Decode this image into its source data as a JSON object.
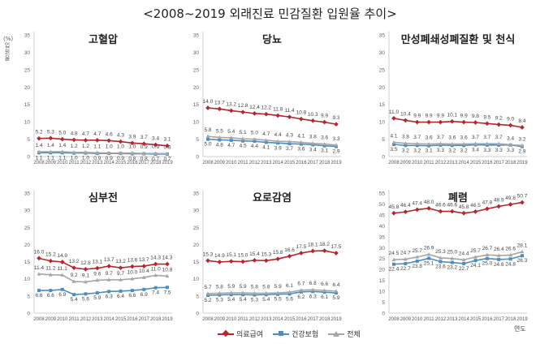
{
  "title": "<2008~2019 외래진료 민감질환 입원율 추이>",
  "y_unit": "(%)입원율",
  "x_unit": "연도",
  "legend": [
    {
      "label": "의료급여",
      "color": "#b5252b",
      "marker": "diamond"
    },
    {
      "label": "건강보험",
      "color": "#4a8ec2",
      "marker": "square"
    },
    {
      "label": "전체",
      "color": "#a6a6a6",
      "marker": "triangle"
    }
  ],
  "chart_data": [
    {
      "type": "line",
      "title": "고혈압",
      "x": [
        "2008",
        "2009",
        "2010",
        "2011",
        "2012",
        "2013",
        "2014",
        "2015",
        "2016",
        "2017",
        "2018",
        "2019"
      ],
      "ylim": [
        0,
        35
      ],
      "yticks": [
        0,
        5,
        10,
        15,
        20,
        25,
        30,
        35
      ],
      "series": [
        {
          "name": "의료급여",
          "values": [
            5.2,
            5.3,
            5.0,
            4.8,
            4.7,
            4.7,
            4.6,
            4.3,
            3.9,
            3.7,
            3.4,
            3.1
          ]
        },
        {
          "name": "건강보험",
          "values": [
            1.1,
            1.1,
            1.1,
            1.0,
            1.0,
            0.9,
            0.9,
            0.9,
            0.8,
            0.8,
            0.7,
            0.7
          ]
        },
        {
          "name": "전체",
          "values": [
            1.4,
            1.4,
            1.4,
            1.2,
            1.2,
            1.1,
            1.0,
            1.0,
            1.0,
            0.9,
            0.9,
            0.8
          ]
        }
      ]
    },
    {
      "type": "line",
      "title": "당뇨",
      "x": [
        "2008",
        "2009",
        "2010",
        "2011",
        "2012",
        "2013",
        "2014",
        "2015",
        "2016",
        "2017",
        "2018",
        "2019"
      ],
      "ylim": [
        0,
        35
      ],
      "yticks": [
        0,
        5,
        10,
        15,
        20,
        25,
        30,
        35
      ],
      "series": [
        {
          "name": "의료급여",
          "values": [
            14.0,
            13.7,
            13.2,
            12.8,
            12.4,
            12.2,
            11.8,
            11.4,
            10.8,
            10.3,
            9.9,
            9.3
          ]
        },
        {
          "name": "건강보험",
          "values": [
            5.0,
            4.8,
            4.7,
            4.5,
            4.4,
            4.1,
            3.9,
            3.7,
            3.6,
            3.4,
            3.1,
            2.9
          ]
        },
        {
          "name": "전체",
          "values": [
            5.8,
            5.5,
            5.4,
            5.1,
            5.0,
            4.7,
            4.4,
            4.3,
            4.1,
            3.8,
            3.6,
            3.3
          ]
        }
      ]
    },
    {
      "type": "line",
      "title": "만성폐쇄성폐질환 및 천식",
      "x": [
        "2008",
        "2009",
        "2010",
        "2011",
        "2012",
        "2013",
        "2014",
        "2015",
        "2016",
        "2017",
        "2018",
        "2019"
      ],
      "ylim": [
        0,
        35
      ],
      "yticks": [
        0,
        5,
        10,
        15,
        20,
        25,
        30,
        35
      ],
      "series": [
        {
          "name": "의료급여",
          "values": [
            11.0,
            10.4,
            9.9,
            9.9,
            9.9,
            10.1,
            9.9,
            9.8,
            9.5,
            9.2,
            9.0,
            8.4
          ]
        },
        {
          "name": "건강보험",
          "values": [
            3.5,
            3.2,
            3.2,
            3.1,
            3.3,
            3.2,
            3.2,
            3.4,
            3.3,
            3.3,
            3.3,
            2.9
          ]
        },
        {
          "name": "전체",
          "values": [
            4.1,
            3.8,
            3.7,
            3.6,
            3.7,
            3.6,
            3.6,
            3.7,
            3.7,
            3.7,
            3.4,
            3.2
          ]
        }
      ]
    },
    {
      "type": "line",
      "title": "심부전",
      "x": [
        "2008",
        "2009",
        "2010",
        "2011",
        "2012",
        "2013",
        "2014",
        "2015",
        "2016",
        "2017",
        "2018",
        "2019"
      ],
      "ylim": [
        0,
        35
      ],
      "yticks": [
        0,
        5,
        10,
        15,
        20,
        25,
        30,
        35
      ],
      "series": [
        {
          "name": "의료급여",
          "values": [
            16.0,
            15.2,
            14.9,
            13.2,
            12.8,
            13.1,
            13.7,
            13.2,
            13.6,
            13.7,
            14.3,
            14.3
          ]
        },
        {
          "name": "건강보험",
          "values": [
            6.6,
            6.6,
            6.9,
            5.4,
            5.6,
            5.9,
            6.3,
            6.4,
            6.6,
            6.9,
            7.4,
            7.5
          ]
        },
        {
          "name": "전체",
          "values": [
            11.4,
            11.2,
            11.1,
            9.2,
            9.1,
            9.6,
            9.7,
            9.7,
            10.0,
            10.4,
            11.0,
            10.8
          ]
        }
      ]
    },
    {
      "type": "line",
      "title": "요로감염",
      "x": [
        "2008",
        "2009",
        "2010",
        "2011",
        "2012",
        "2013",
        "2014",
        "2015",
        "2016",
        "2017",
        "2018",
        "2019"
      ],
      "ylim": [
        0,
        35
      ],
      "yticks": [
        0,
        5,
        10,
        15,
        20,
        25,
        30,
        35
      ],
      "series": [
        {
          "name": "의료급여",
          "values": [
            15.3,
            14.9,
            15.1,
            15.0,
            15.4,
            15.3,
            15.8,
            16.6,
            17.5,
            18.1,
            18.2,
            17.5
          ]
        },
        {
          "name": "건강보험",
          "values": [
            5.2,
            5.3,
            5.4,
            5.4,
            5.3,
            5.4,
            5.5,
            5.6,
            6.2,
            6.3,
            6.1,
            5.9
          ]
        },
        {
          "name": "전체",
          "values": [
            5.7,
            5.8,
            5.9,
            5.9,
            5.8,
            5.8,
            5.9,
            6.1,
            6.7,
            6.8,
            6.6,
            6.4
          ]
        }
      ]
    },
    {
      "type": "line",
      "title": "폐렴",
      "x": [
        "2008",
        "2009",
        "2010",
        "2011",
        "2012",
        "2013",
        "2014",
        "2015",
        "2016",
        "2017",
        "2018",
        "2019"
      ],
      "ylim": [
        0,
        55
      ],
      "yticks": [
        0,
        5,
        10,
        15,
        20,
        25,
        30,
        35,
        40,
        45,
        50,
        55
      ],
      "series": [
        {
          "name": "의료급여",
          "values": [
            45.8,
            46.4,
            47.4,
            48.0,
            46.6,
            46.6,
            45.8,
            46.5,
            47.8,
            48.9,
            49.8,
            50.7
          ]
        },
        {
          "name": "건강보험",
          "values": [
            22.4,
            22.7,
            23.8,
            25.1,
            23.6,
            23.2,
            22.7,
            24.1,
            25.0,
            24.6,
            24.8,
            26.3
          ]
        },
        {
          "name": "전체",
          "values": [
            24.5,
            24.7,
            25.7,
            26.9,
            25.3,
            25.0,
            24.4,
            25.7,
            26.7,
            26.4,
            26.6,
            28.1
          ]
        }
      ]
    }
  ]
}
